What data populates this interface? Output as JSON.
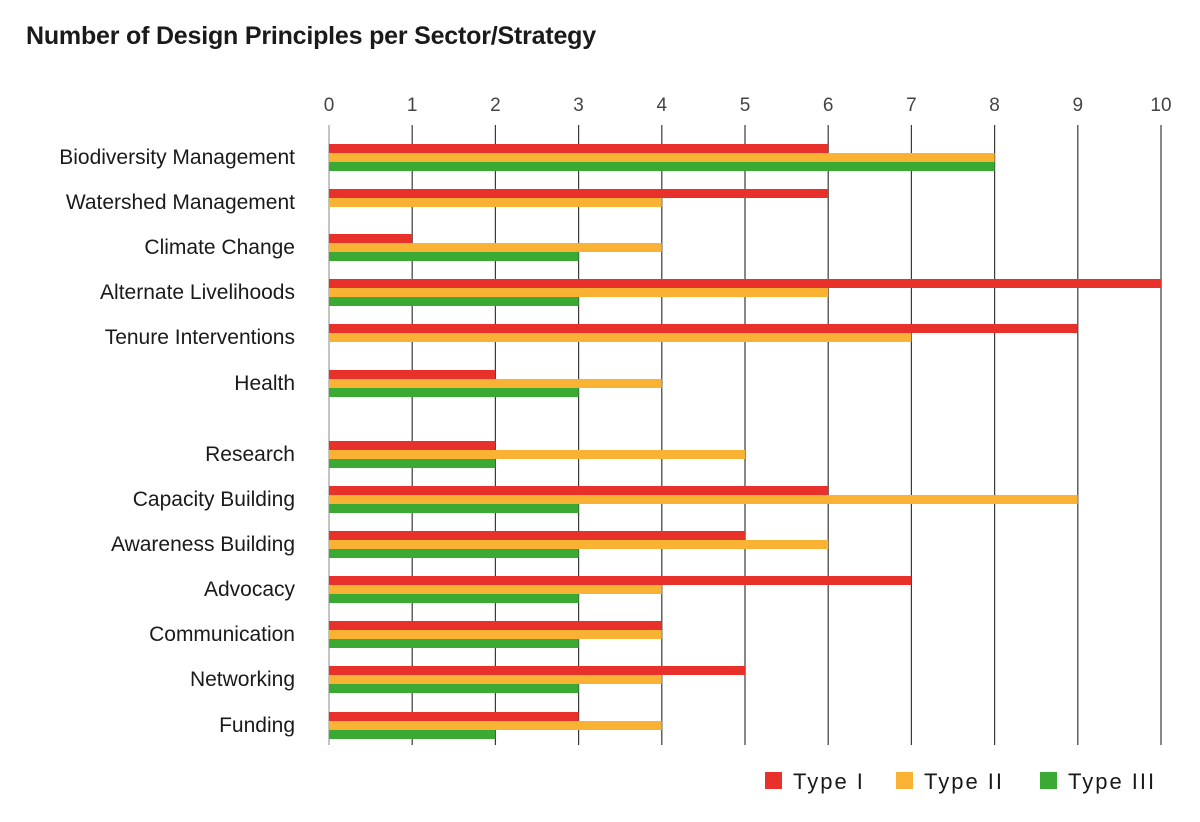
{
  "chart_data": {
    "type": "bar",
    "orientation": "horizontal",
    "title": "Number of Design Principles per Sector/Strategy",
    "xlim": [
      0,
      10
    ],
    "ticks": [
      0,
      1,
      2,
      3,
      4,
      5,
      6,
      7,
      8,
      9,
      10
    ],
    "grid": true,
    "legend_position": "bottom-right",
    "categories": [
      "Biodiversity Management",
      "Watershed Management",
      "Climate Change",
      "Alternate Livelihoods",
      "Tenure Interventions",
      "Health",
      "Research",
      "Capacity Building",
      "Awareness Building",
      "Advocacy",
      "Communication",
      "Networking",
      "Funding"
    ],
    "series": [
      {
        "name": "Type I",
        "color": "#e8312a",
        "values": [
          6,
          6,
          1,
          10,
          9,
          2,
          2,
          6,
          5,
          7,
          4,
          5,
          3
        ]
      },
      {
        "name": "Type II",
        "color": "#f9b234",
        "values": [
          8,
          4,
          4,
          6,
          7,
          4,
          5,
          9,
          6,
          4,
          4,
          4,
          4
        ]
      },
      {
        "name": "Type III",
        "color": "#3aaa35",
        "values": [
          8,
          0,
          3,
          3,
          0,
          3,
          2,
          3,
          3,
          3,
          3,
          3,
          2
        ]
      }
    ]
  }
}
